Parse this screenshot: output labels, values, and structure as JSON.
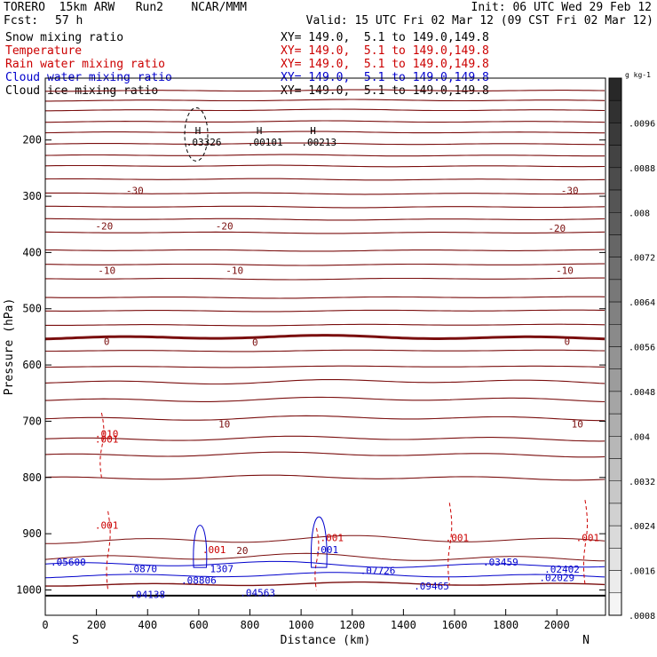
{
  "header": {
    "model_line": "TORERO  15km ARW   Run2    NCAR/MMM",
    "init": "Init: 06 UTC Wed 29 Feb 12",
    "fcst_label": "Fcst:",
    "fcst_value": "57 h",
    "valid": "Valid: 15 UTC Fri 02 Mar 12 (09 CST Fri 02 Mar 12)"
  },
  "legend": [
    {
      "name": "Snow mixing ratio",
      "xy": "XY= 149.0,  5.1 to 149.0,149.8",
      "color": "#000000"
    },
    {
      "name": "Temperature",
      "xy": "XY= 149.0,  5.1 to 149.0,149.8",
      "color": "#cc0000"
    },
    {
      "name": "Rain water mixing ratio",
      "xy": "XY= 149.0,  5.1 to 149.0,149.8",
      "color": "#cc0000"
    },
    {
      "name": "Cloud water mixing ratio",
      "xy": "XY= 149.0,  5.1 to 149.0,149.8",
      "color": "#0000cc"
    },
    {
      "name": "Cloud ice mixing ratio",
      "xy": "XY= 149.0,  5.1 to 149.0,149.8",
      "color": "#000000"
    }
  ],
  "chart_data": {
    "type": "line",
    "xlabel": "Distance (km)",
    "ylabel": "Pressure (hPa)",
    "xlim": [
      0,
      2190
    ],
    "ylim": [
      1045,
      90
    ],
    "x_ticks": [
      0,
      200,
      400,
      600,
      800,
      1000,
      1200,
      1400,
      1600,
      1800,
      2000
    ],
    "y_ticks": [
      200,
      300,
      400,
      500,
      600,
      700,
      800,
      900,
      1000
    ],
    "x_end_labels": {
      "left": "S",
      "right": "N"
    },
    "colorbar": {
      "unit": "g kg-1",
      "labels": [
        ".0096",
        ".0088",
        ".008",
        ".0072",
        ".0064",
        ".0056",
        ".0048",
        ".004",
        ".0032",
        ".0024",
        ".0016",
        ".0008"
      ]
    },
    "temperature_labels": [
      {
        "x": 350,
        "p": 290,
        "text": "-30"
      },
      {
        "x": 2050,
        "p": 290,
        "text": "-30"
      },
      {
        "x": 230,
        "p": 353,
        "text": "-20"
      },
      {
        "x": 700,
        "p": 353,
        "text": "-20"
      },
      {
        "x": 2000,
        "p": 357,
        "text": "-20"
      },
      {
        "x": 240,
        "p": 432,
        "text": "-10"
      },
      {
        "x": 740,
        "p": 432,
        "text": "-10"
      },
      {
        "x": 2030,
        "p": 432,
        "text": "-10"
      },
      {
        "x": 240,
        "p": 558,
        "text": "0"
      },
      {
        "x": 820,
        "p": 560,
        "text": "0"
      },
      {
        "x": 2040,
        "p": 558,
        "text": "0"
      },
      {
        "x": 700,
        "p": 705,
        "text": "10"
      },
      {
        "x": 2080,
        "p": 705,
        "text": "10"
      },
      {
        "x": 770,
        "p": 930,
        "text": "20"
      }
    ],
    "cloud_ice_maxima": [
      {
        "x": 620,
        "p": 202,
        "text": ".03326"
      },
      {
        "x": 860,
        "p": 202,
        "text": ".00101"
      },
      {
        "x": 1070,
        "p": 202,
        "text": ".00213"
      }
    ],
    "rain_labels": [
      {
        "x": 240,
        "p": 722,
        "text": ".010"
      },
      {
        "x": 240,
        "p": 732,
        "text": ".001"
      },
      {
        "x": 240,
        "p": 885,
        "text": ".001"
      },
      {
        "x": 660,
        "p": 928,
        "text": ".001"
      },
      {
        "x": 1120,
        "p": 907,
        "text": ".001"
      },
      {
        "x": 1610,
        "p": 907,
        "text": ".001"
      },
      {
        "x": 2120,
        "p": 907,
        "text": ".001"
      }
    ],
    "cloud_water_labels": [
      {
        "x": 1100,
        "p": 928,
        "text": ".001"
      },
      {
        "x": 1300,
        "p": 965,
        "text": ".07726"
      },
      {
        "x": 1780,
        "p": 950,
        "text": ".03459"
      },
      {
        "x": 2000,
        "p": 978,
        "text": ".02029"
      },
      {
        "x": 90,
        "p": 950,
        "text": ".05600"
      },
      {
        "x": 600,
        "p": 983,
        "text": ".08806"
      },
      {
        "x": 830,
        "p": 1005,
        "text": ".04563"
      },
      {
        "x": 1510,
        "p": 993,
        "text": ".09465"
      },
      {
        "x": 400,
        "p": 1008,
        "text": ".04138"
      },
      {
        "x": 2020,
        "p": 963,
        "text": ".02402"
      },
      {
        "x": 380,
        "p": 962,
        "text": ".0870"
      },
      {
        "x": 690,
        "p": 962,
        "text": "1307"
      }
    ]
  }
}
